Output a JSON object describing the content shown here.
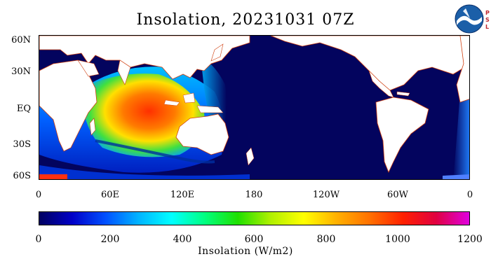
{
  "title": "Insolation, 20231031 07Z",
  "latitude_labels": [
    "60N",
    "30N",
    "EQ",
    "30S",
    "60S"
  ],
  "longitude_labels": [
    "0",
    "60E",
    "120E",
    "180",
    "120W",
    "60W",
    "0"
  ],
  "colorbar": {
    "title": "Insolation (W/m2)",
    "ticks": [
      "0",
      "200",
      "400",
      "600",
      "800",
      "1000",
      "1200"
    ],
    "range": [
      0,
      1200
    ],
    "colors": [
      "#000060",
      "#0000c8",
      "#0050ff",
      "#00b4ff",
      "#00ffff",
      "#00ff80",
      "#20e000",
      "#b0f000",
      "#ffff00",
      "#ffb000",
      "#ff7000",
      "#ff2000",
      "#e00040",
      "#e000e0"
    ]
  },
  "logos": {
    "noaa_icon": "noaa-logo",
    "psl_letters": "PSL"
  },
  "colors": {
    "ocean_night": "#03045e",
    "land": "#ffffff",
    "coast": "#d04010"
  }
}
